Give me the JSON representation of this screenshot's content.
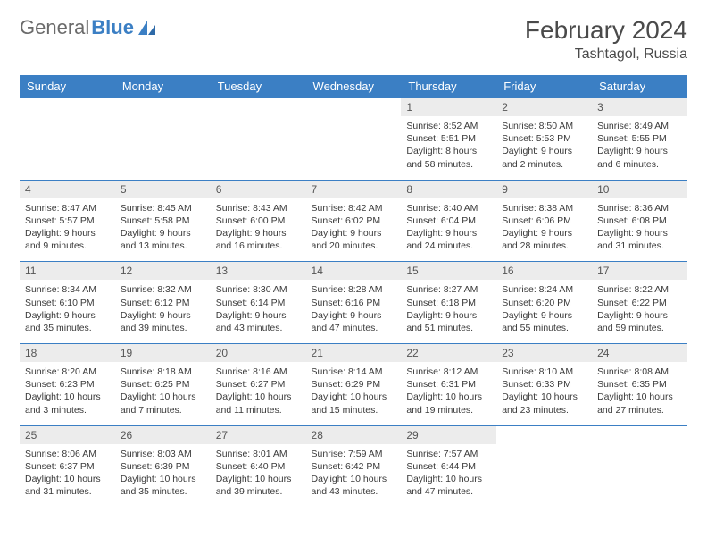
{
  "brand": {
    "part1": "General",
    "part2": "Blue"
  },
  "title": "February 2024",
  "location": "Tashtagol, Russia",
  "colors": {
    "header_bg": "#3b7fc4",
    "header_text": "#ffffff",
    "daynum_bg": "#ececec",
    "border": "#3b7fc4",
    "text": "#3a3a3a"
  },
  "weekdays": [
    "Sunday",
    "Monday",
    "Tuesday",
    "Wednesday",
    "Thursday",
    "Friday",
    "Saturday"
  ],
  "weeks": [
    [
      {
        "empty": true
      },
      {
        "empty": true
      },
      {
        "empty": true
      },
      {
        "empty": true
      },
      {
        "day": "1",
        "sunrise": "Sunrise: 8:52 AM",
        "sunset": "Sunset: 5:51 PM",
        "daylight1": "Daylight: 8 hours",
        "daylight2": "and 58 minutes."
      },
      {
        "day": "2",
        "sunrise": "Sunrise: 8:50 AM",
        "sunset": "Sunset: 5:53 PM",
        "daylight1": "Daylight: 9 hours",
        "daylight2": "and 2 minutes."
      },
      {
        "day": "3",
        "sunrise": "Sunrise: 8:49 AM",
        "sunset": "Sunset: 5:55 PM",
        "daylight1": "Daylight: 9 hours",
        "daylight2": "and 6 minutes."
      }
    ],
    [
      {
        "day": "4",
        "sunrise": "Sunrise: 8:47 AM",
        "sunset": "Sunset: 5:57 PM",
        "daylight1": "Daylight: 9 hours",
        "daylight2": "and 9 minutes."
      },
      {
        "day": "5",
        "sunrise": "Sunrise: 8:45 AM",
        "sunset": "Sunset: 5:58 PM",
        "daylight1": "Daylight: 9 hours",
        "daylight2": "and 13 minutes."
      },
      {
        "day": "6",
        "sunrise": "Sunrise: 8:43 AM",
        "sunset": "Sunset: 6:00 PM",
        "daylight1": "Daylight: 9 hours",
        "daylight2": "and 16 minutes."
      },
      {
        "day": "7",
        "sunrise": "Sunrise: 8:42 AM",
        "sunset": "Sunset: 6:02 PM",
        "daylight1": "Daylight: 9 hours",
        "daylight2": "and 20 minutes."
      },
      {
        "day": "8",
        "sunrise": "Sunrise: 8:40 AM",
        "sunset": "Sunset: 6:04 PM",
        "daylight1": "Daylight: 9 hours",
        "daylight2": "and 24 minutes."
      },
      {
        "day": "9",
        "sunrise": "Sunrise: 8:38 AM",
        "sunset": "Sunset: 6:06 PM",
        "daylight1": "Daylight: 9 hours",
        "daylight2": "and 28 minutes."
      },
      {
        "day": "10",
        "sunrise": "Sunrise: 8:36 AM",
        "sunset": "Sunset: 6:08 PM",
        "daylight1": "Daylight: 9 hours",
        "daylight2": "and 31 minutes."
      }
    ],
    [
      {
        "day": "11",
        "sunrise": "Sunrise: 8:34 AM",
        "sunset": "Sunset: 6:10 PM",
        "daylight1": "Daylight: 9 hours",
        "daylight2": "and 35 minutes."
      },
      {
        "day": "12",
        "sunrise": "Sunrise: 8:32 AM",
        "sunset": "Sunset: 6:12 PM",
        "daylight1": "Daylight: 9 hours",
        "daylight2": "and 39 minutes."
      },
      {
        "day": "13",
        "sunrise": "Sunrise: 8:30 AM",
        "sunset": "Sunset: 6:14 PM",
        "daylight1": "Daylight: 9 hours",
        "daylight2": "and 43 minutes."
      },
      {
        "day": "14",
        "sunrise": "Sunrise: 8:28 AM",
        "sunset": "Sunset: 6:16 PM",
        "daylight1": "Daylight: 9 hours",
        "daylight2": "and 47 minutes."
      },
      {
        "day": "15",
        "sunrise": "Sunrise: 8:27 AM",
        "sunset": "Sunset: 6:18 PM",
        "daylight1": "Daylight: 9 hours",
        "daylight2": "and 51 minutes."
      },
      {
        "day": "16",
        "sunrise": "Sunrise: 8:24 AM",
        "sunset": "Sunset: 6:20 PM",
        "daylight1": "Daylight: 9 hours",
        "daylight2": "and 55 minutes."
      },
      {
        "day": "17",
        "sunrise": "Sunrise: 8:22 AM",
        "sunset": "Sunset: 6:22 PM",
        "daylight1": "Daylight: 9 hours",
        "daylight2": "and 59 minutes."
      }
    ],
    [
      {
        "day": "18",
        "sunrise": "Sunrise: 8:20 AM",
        "sunset": "Sunset: 6:23 PM",
        "daylight1": "Daylight: 10 hours",
        "daylight2": "and 3 minutes."
      },
      {
        "day": "19",
        "sunrise": "Sunrise: 8:18 AM",
        "sunset": "Sunset: 6:25 PM",
        "daylight1": "Daylight: 10 hours",
        "daylight2": "and 7 minutes."
      },
      {
        "day": "20",
        "sunrise": "Sunrise: 8:16 AM",
        "sunset": "Sunset: 6:27 PM",
        "daylight1": "Daylight: 10 hours",
        "daylight2": "and 11 minutes."
      },
      {
        "day": "21",
        "sunrise": "Sunrise: 8:14 AM",
        "sunset": "Sunset: 6:29 PM",
        "daylight1": "Daylight: 10 hours",
        "daylight2": "and 15 minutes."
      },
      {
        "day": "22",
        "sunrise": "Sunrise: 8:12 AM",
        "sunset": "Sunset: 6:31 PM",
        "daylight1": "Daylight: 10 hours",
        "daylight2": "and 19 minutes."
      },
      {
        "day": "23",
        "sunrise": "Sunrise: 8:10 AM",
        "sunset": "Sunset: 6:33 PM",
        "daylight1": "Daylight: 10 hours",
        "daylight2": "and 23 minutes."
      },
      {
        "day": "24",
        "sunrise": "Sunrise: 8:08 AM",
        "sunset": "Sunset: 6:35 PM",
        "daylight1": "Daylight: 10 hours",
        "daylight2": "and 27 minutes."
      }
    ],
    [
      {
        "day": "25",
        "sunrise": "Sunrise: 8:06 AM",
        "sunset": "Sunset: 6:37 PM",
        "daylight1": "Daylight: 10 hours",
        "daylight2": "and 31 minutes."
      },
      {
        "day": "26",
        "sunrise": "Sunrise: 8:03 AM",
        "sunset": "Sunset: 6:39 PM",
        "daylight1": "Daylight: 10 hours",
        "daylight2": "and 35 minutes."
      },
      {
        "day": "27",
        "sunrise": "Sunrise: 8:01 AM",
        "sunset": "Sunset: 6:40 PM",
        "daylight1": "Daylight: 10 hours",
        "daylight2": "and 39 minutes."
      },
      {
        "day": "28",
        "sunrise": "Sunrise: 7:59 AM",
        "sunset": "Sunset: 6:42 PM",
        "daylight1": "Daylight: 10 hours",
        "daylight2": "and 43 minutes."
      },
      {
        "day": "29",
        "sunrise": "Sunrise: 7:57 AM",
        "sunset": "Sunset: 6:44 PM",
        "daylight1": "Daylight: 10 hours",
        "daylight2": "and 47 minutes."
      },
      {
        "empty": true
      },
      {
        "empty": true
      }
    ]
  ]
}
